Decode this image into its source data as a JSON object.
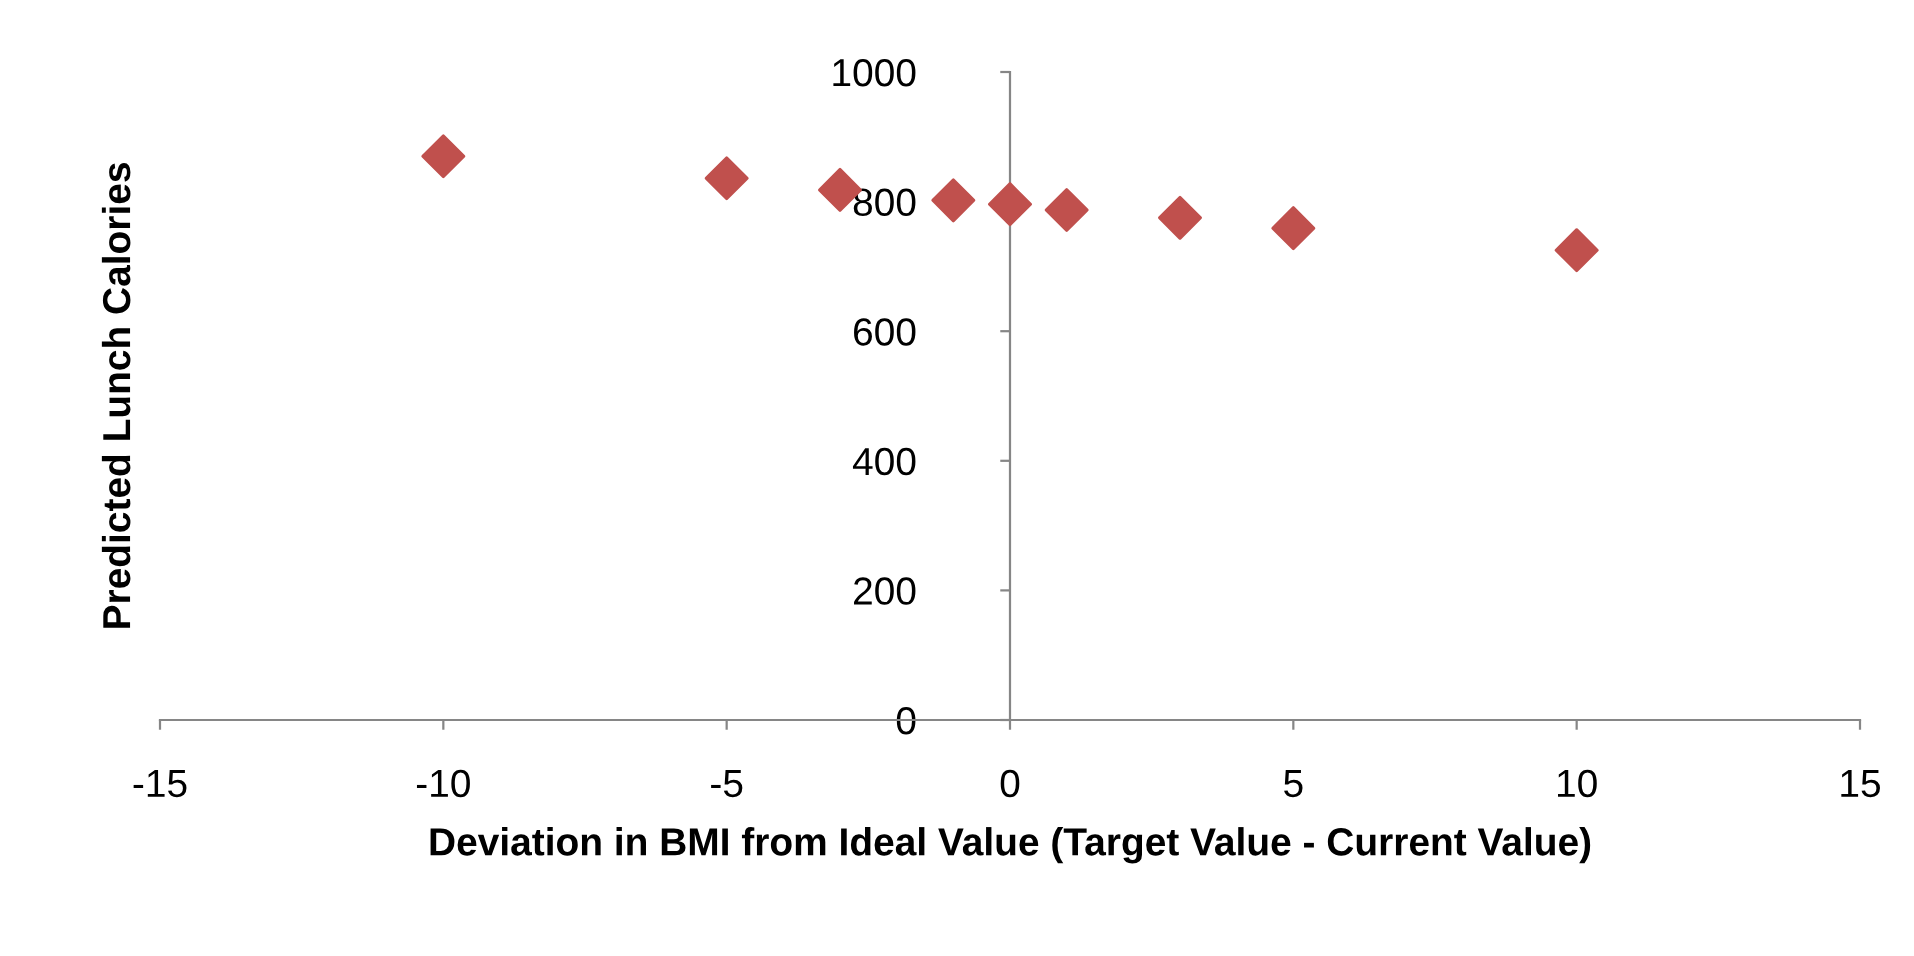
{
  "chart_data": {
    "type": "scatter",
    "xlabel": "Deviation in BMI from Ideal Value (Target Value - Current Value)",
    "ylabel": "Predicted Lunch Calories",
    "x": [
      -10,
      -5,
      -3,
      -1,
      0,
      1,
      3,
      5,
      10
    ],
    "series": [
      {
        "color": "#c0504d",
        "values": [
          870,
          836,
          818,
          802,
          796,
          787,
          775,
          759,
          725
        ]
      }
    ],
    "xlim": [
      -15,
      15
    ],
    "xticks": [
      -15,
      -10,
      -5,
      0,
      5,
      10,
      15
    ],
    "ylim": [
      0,
      1000
    ],
    "yticks": [
      0,
      200,
      400,
      600,
      800,
      1000
    ],
    "marker": "diamond",
    "grid": false,
    "legend": false
  }
}
